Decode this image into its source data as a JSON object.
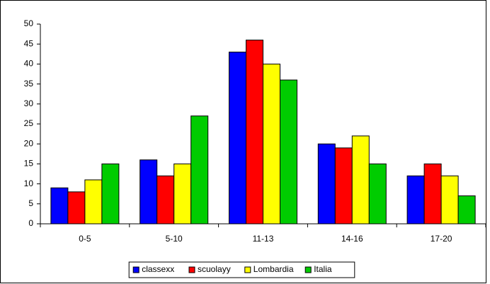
{
  "chart_data": {
    "type": "bar",
    "categories": [
      "0-5",
      "5-10",
      "11-13",
      "14-16",
      "17-20"
    ],
    "series": [
      {
        "name": "classexx",
        "color": "#0000ff",
        "values": [
          9,
          16,
          43,
          20,
          12
        ]
      },
      {
        "name": "scuolayy",
        "color": "#ff0000",
        "values": [
          8,
          12,
          46,
          19,
          15
        ]
      },
      {
        "name": "Lombardia",
        "color": "#ffff00",
        "values": [
          11,
          15,
          40,
          22,
          12
        ]
      },
      {
        "name": "Italia",
        "color": "#00cc00",
        "values": [
          15,
          27,
          36,
          15,
          7
        ]
      }
    ],
    "ylim": [
      0,
      50
    ],
    "yticks": [
      0,
      5,
      10,
      15,
      20,
      25,
      30,
      35,
      40,
      45,
      50
    ],
    "grid": false,
    "legend": "bottom"
  }
}
